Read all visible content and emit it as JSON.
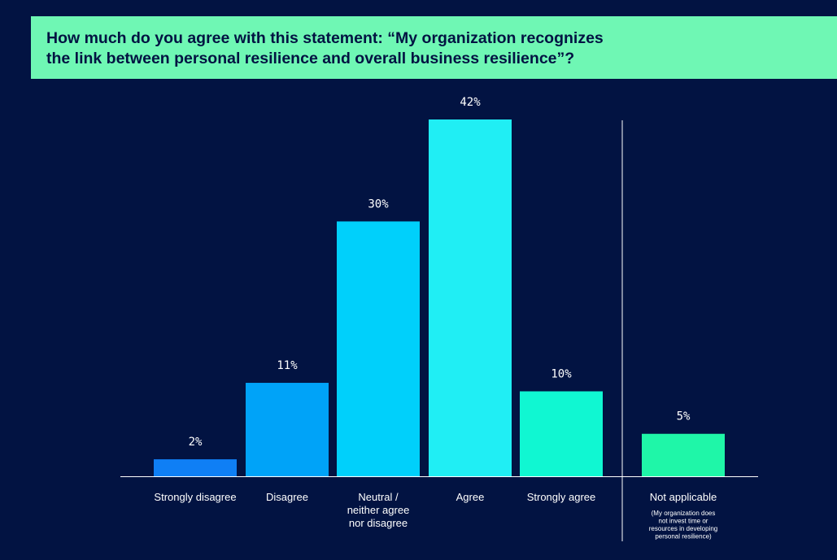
{
  "title": {
    "line1": "How much do you agree with this statement: “My organization recognizes",
    "line2": "the link between personal resilience and overall business resilience”?"
  },
  "chart_data": {
    "type": "bar",
    "title": "How much do you agree with this statement: “My organization recognizes the link between personal resilience and overall business resilience”?",
    "xlabel": "",
    "ylabel": "",
    "unit": "%",
    "ylim": [
      0,
      42
    ],
    "grid": false,
    "categories": [
      {
        "label": [
          "Strongly disagree"
        ],
        "value": 2,
        "display": "2%",
        "color": "#0f7ff5"
      },
      {
        "label": [
          "Disagree"
        ],
        "value": 11,
        "display": "11%",
        "color": "#00a3f8"
      },
      {
        "label": [
          "Neutral /",
          "neither agree",
          "nor disagree"
        ],
        "value": 30,
        "display": "30%",
        "color": "#00d0fb"
      },
      {
        "label": [
          "Agree"
        ],
        "value": 42,
        "display": "42%",
        "color": "#20eef4"
      },
      {
        "label": [
          "Strongly agree"
        ],
        "value": 10,
        "display": "10%",
        "color": "#10f7d2"
      },
      {
        "label": [
          "Not applicable"
        ],
        "value": 5,
        "display": "5%",
        "color": "#1ff6a8",
        "note": [
          "(My organization does",
          "not invest time or",
          "resources in developing",
          "personal resilience)"
        ],
        "separated": true
      }
    ]
  }
}
